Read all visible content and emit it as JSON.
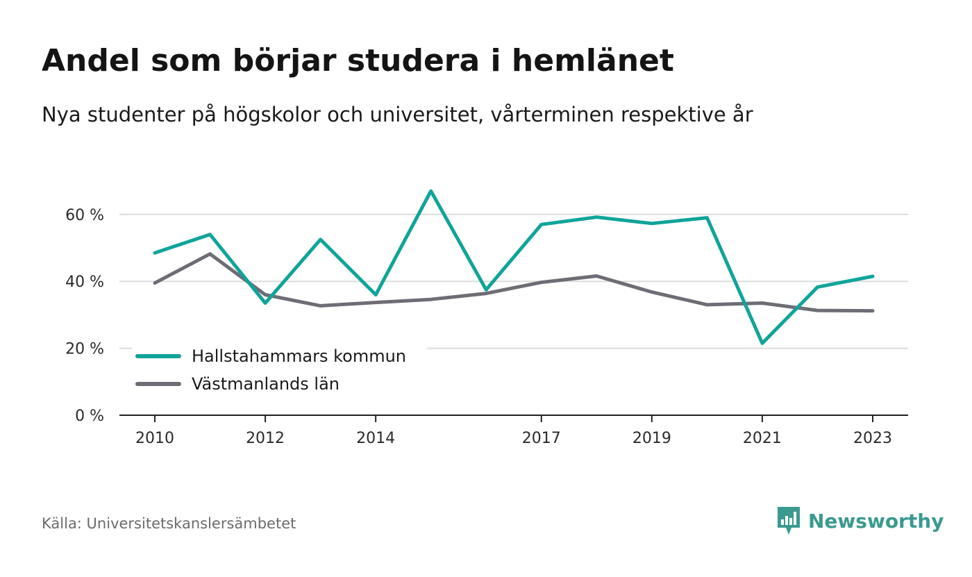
{
  "title": "Andel som börjar studera i hemlänet",
  "subtitle": "Nya studenter på högskolor och universitet, vårterminen respektive år",
  "source": "Källa: Universitetskanslersämbetet",
  "brand": {
    "name": "Newsworthy",
    "icon": "newsworthy-logo-icon",
    "color": "#3a9a8f"
  },
  "chart_data": {
    "type": "line",
    "x": [
      2010,
      2011,
      2012,
      2013,
      2014,
      2015,
      2016,
      2017,
      2018,
      2019,
      2020,
      2021,
      2022,
      2023
    ],
    "xticks": [
      "2010",
      "2012",
      "2014",
      "2017",
      "2019",
      "2021",
      "2023"
    ],
    "yticks": [
      "0 %",
      "20 %",
      "40 %",
      "60 %"
    ],
    "ylim": [
      0,
      70
    ],
    "grid": true,
    "legend_position": "bottom-left",
    "series": [
      {
        "name": "Hallstahammars kommun",
        "color": "#10a499",
        "values": [
          48.5,
          54,
          33.5,
          52.5,
          36,
          67,
          37.5,
          57,
          59.2,
          57.3,
          59,
          21.5,
          38.3,
          41.5
        ]
      },
      {
        "name": "Västmanlands län",
        "color": "#6e6c75",
        "values": [
          39.5,
          48.2,
          36,
          32.7,
          33.7,
          34.6,
          36.4,
          39.7,
          41.6,
          36.8,
          33,
          33.5,
          31.3,
          31.2
        ]
      }
    ]
  }
}
